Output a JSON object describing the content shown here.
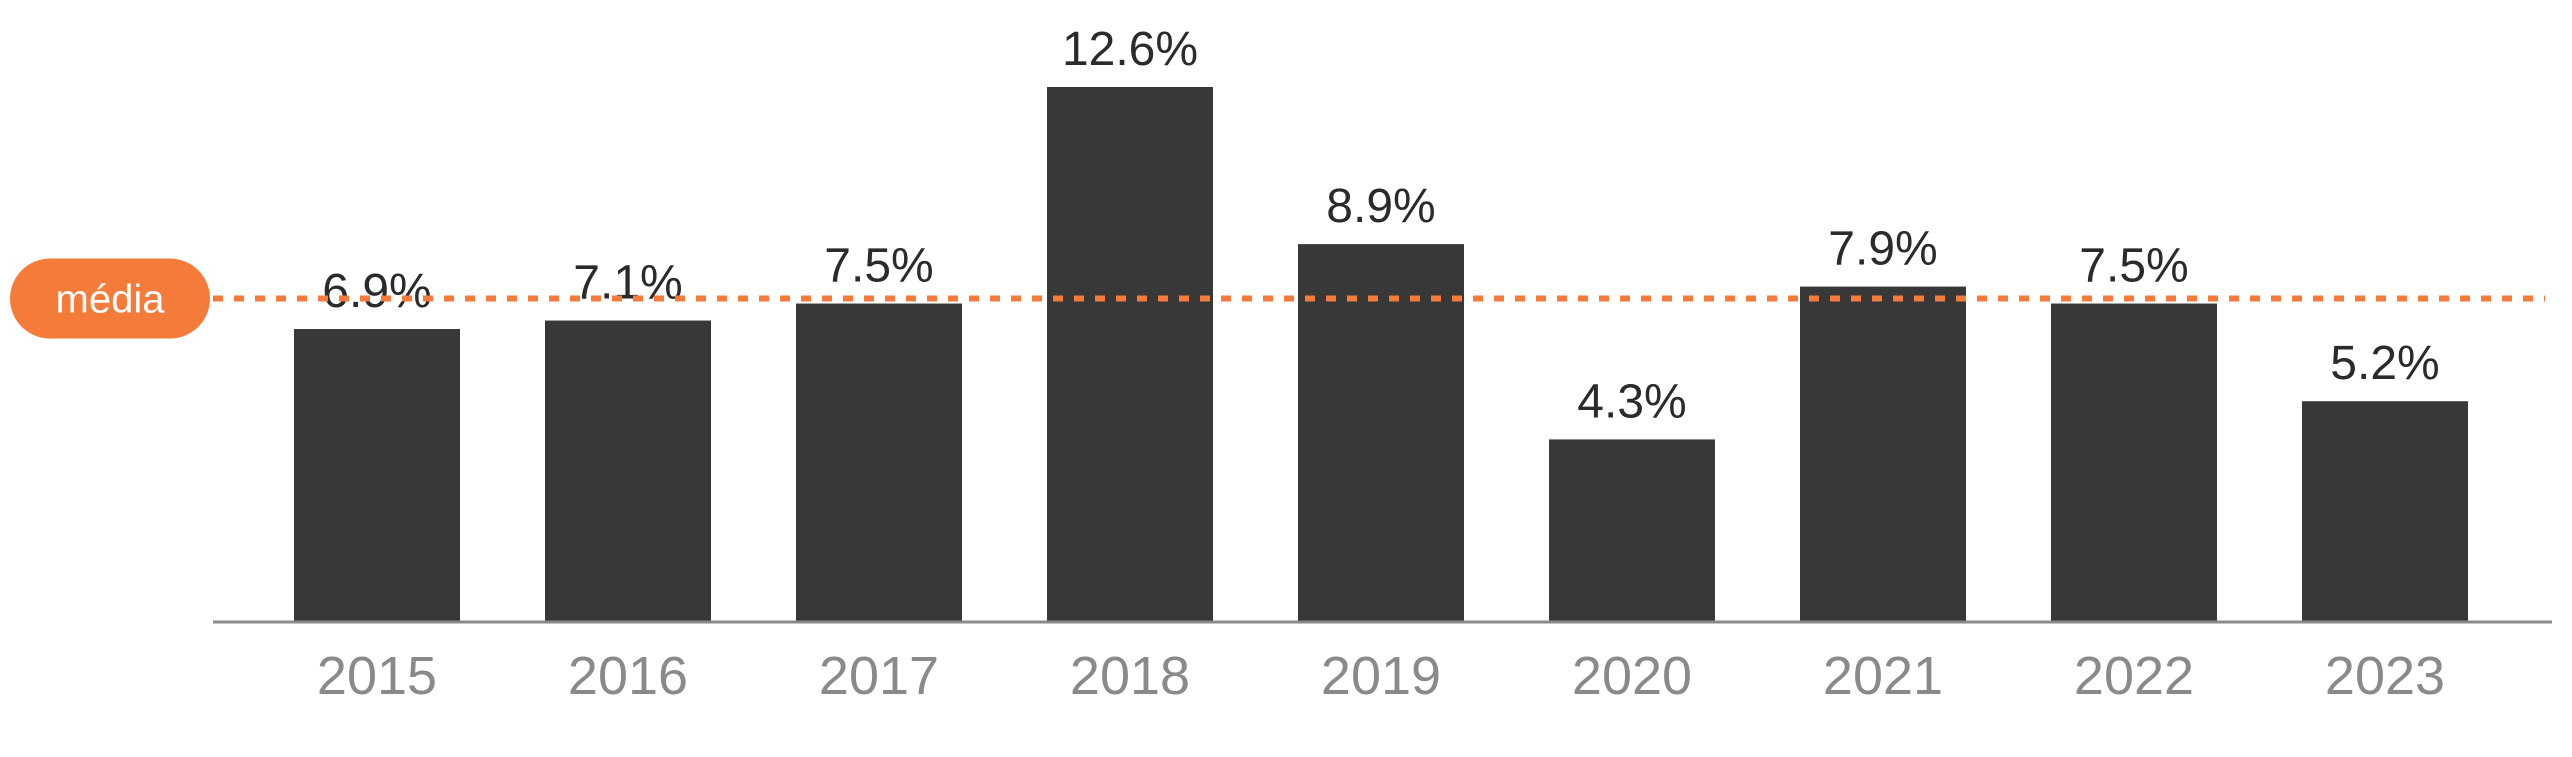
{
  "chart_data": {
    "type": "bar",
    "categories": [
      "2015",
      "2016",
      "2017",
      "2018",
      "2019",
      "2020",
      "2021",
      "2022",
      "2023"
    ],
    "values": [
      6.9,
      7.1,
      7.5,
      12.6,
      8.9,
      4.3,
      7.9,
      7.5,
      5.2
    ],
    "value_labels": [
      "6.9%",
      "7.1%",
      "7.5%",
      "12.6%",
      "8.9%",
      "4.3%",
      "7.9%",
      "7.5%",
      "5.2%"
    ],
    "title": "",
    "xlabel": "",
    "ylabel": "",
    "ylim": [
      0,
      12.6
    ],
    "grid": false,
    "average_line": {
      "label": "média",
      "value": 7.5
    },
    "colors": {
      "bar": "#383838",
      "average": "#F47B3A",
      "axis": "#8a8a8a",
      "tick_text": "#8a8a8a",
      "value_text": "#2b2b2b"
    }
  }
}
